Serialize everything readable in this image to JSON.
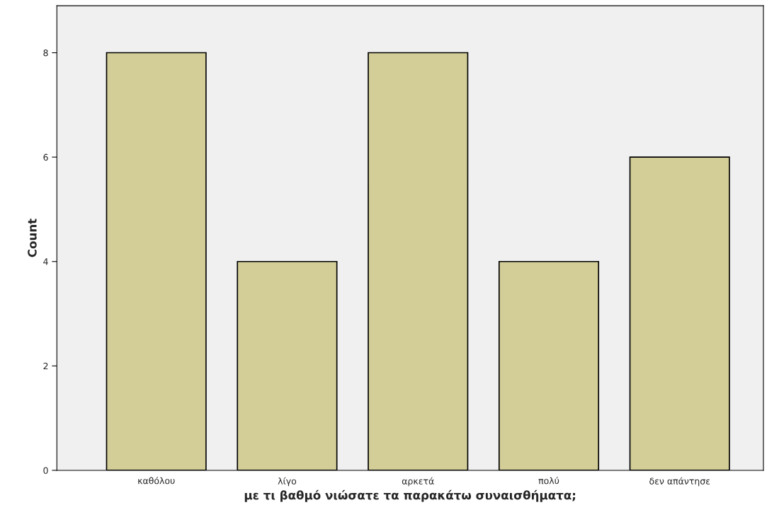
{
  "chart_data": {
    "type": "bar",
    "xlabel": "με τι βαθμό νιώσατε τα παρακάτω συναισθήματα;",
    "ylabel": "Count",
    "categories": [
      "καθόλου",
      "λίγο",
      "αρκετά",
      "πολύ",
      "δεν απάντησε"
    ],
    "values": [
      8,
      4,
      8,
      4,
      6
    ],
    "color": "#d3ce98",
    "ylim": [
      0,
      8.9
    ],
    "yticks": [
      0,
      2,
      4,
      6,
      8
    ],
    "grid": false
  }
}
